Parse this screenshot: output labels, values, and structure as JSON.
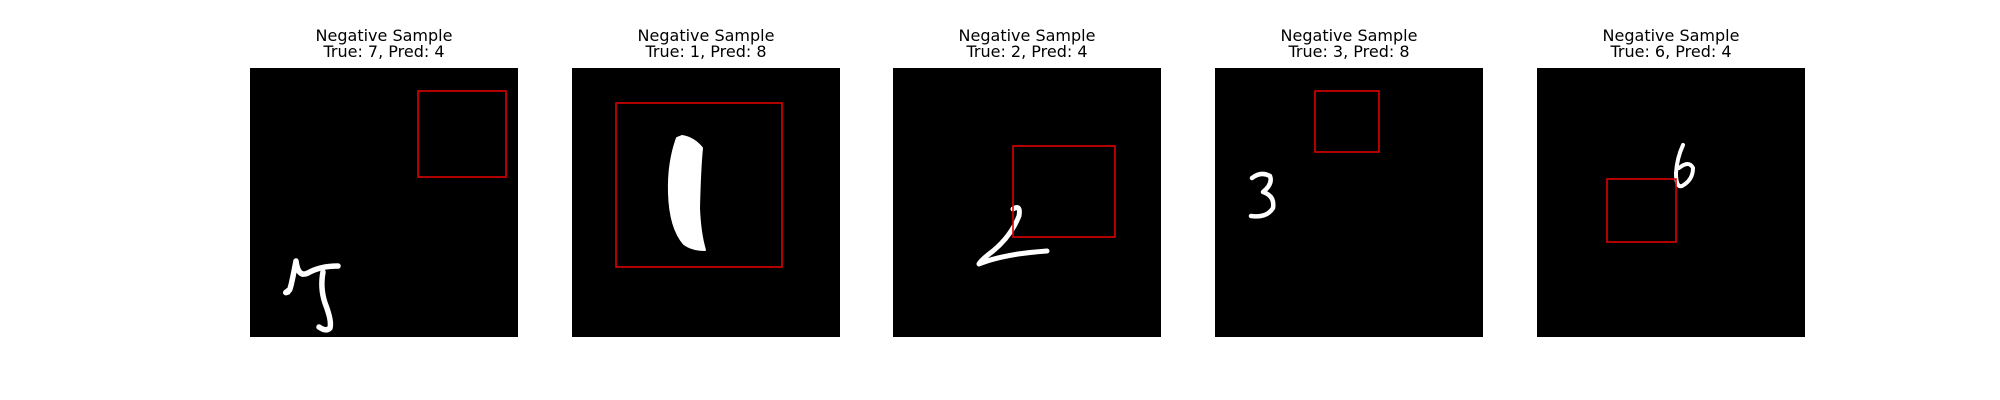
{
  "figure": {
    "panels": [
      {
        "title": "Negative Sample",
        "subtitle": "True: 7, Pred: 4",
        "true_label": 7,
        "pred_label": 4
      },
      {
        "title": "Negative Sample",
        "subtitle": "True: 1, Pred: 8",
        "true_label": 1,
        "pred_label": 8
      },
      {
        "title": "Negative Sample",
        "subtitle": "True: 2, Pred: 4",
        "true_label": 2,
        "pred_label": 4
      },
      {
        "title": "Negative Sample",
        "subtitle": "True: 3, Pred: 8",
        "true_label": 3,
        "pred_label": 8
      },
      {
        "title": "Negative Sample",
        "subtitle": "True: 6, Pred: 4",
        "true_label": 6,
        "pred_label": 4
      }
    ],
    "colors": {
      "background": "#000000",
      "digit_stroke": "#ffffff",
      "box_stroke": "#dd0000"
    }
  }
}
